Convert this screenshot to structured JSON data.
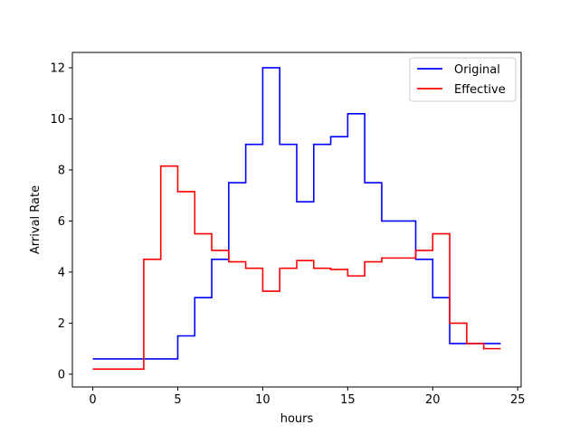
{
  "chart_data": {
    "type": "line",
    "title": "",
    "xlabel": "hours",
    "ylabel": "Arrival Rate",
    "xlim": [
      -1.2,
      25.2
    ],
    "ylim": [
      -0.5,
      12.6
    ],
    "xticks": [
      0,
      5,
      10,
      15,
      20,
      25
    ],
    "yticks": [
      0,
      2,
      4,
      6,
      8,
      10,
      12
    ],
    "xtick_labels": [
      "0",
      "5",
      "10",
      "15",
      "20",
      "25"
    ],
    "ytick_labels": [
      "0",
      "2",
      "4",
      "6",
      "8",
      "10",
      "12"
    ],
    "legend": {
      "placement": "top-right",
      "entries": [
        "Original",
        "Effective"
      ]
    },
    "grid": false,
    "series": [
      {
        "name": "Original",
        "color": "#0000ff",
        "step": "post",
        "x": [
          0,
          1,
          2,
          3,
          4,
          5,
          6,
          7,
          8,
          9,
          10,
          11,
          12,
          13,
          14,
          15,
          16,
          17,
          18,
          19,
          20,
          21,
          22,
          23,
          24
        ],
        "values": [
          0.6,
          0.6,
          0.6,
          0.6,
          0.6,
          1.5,
          3.0,
          4.5,
          7.5,
          9.0,
          12.0,
          9.0,
          6.75,
          9.0,
          9.3,
          10.2,
          7.5,
          6.0,
          6.0,
          4.5,
          3.0,
          1.2,
          1.2,
          1.2,
          1.2
        ]
      },
      {
        "name": "Effective",
        "color": "#ff0000",
        "step": "post",
        "x": [
          0,
          1,
          2,
          3,
          4,
          5,
          6,
          7,
          8,
          9,
          10,
          11,
          12,
          13,
          14,
          15,
          16,
          17,
          18,
          19,
          20,
          21,
          22,
          23,
          24
        ],
        "values": [
          0.2,
          0.2,
          0.2,
          4.5,
          8.15,
          7.15,
          5.5,
          4.85,
          4.4,
          4.15,
          3.25,
          4.15,
          4.45,
          4.15,
          4.1,
          3.85,
          4.4,
          4.55,
          4.55,
          4.85,
          5.5,
          2.0,
          1.2,
          1.0,
          1.0
        ]
      }
    ]
  }
}
